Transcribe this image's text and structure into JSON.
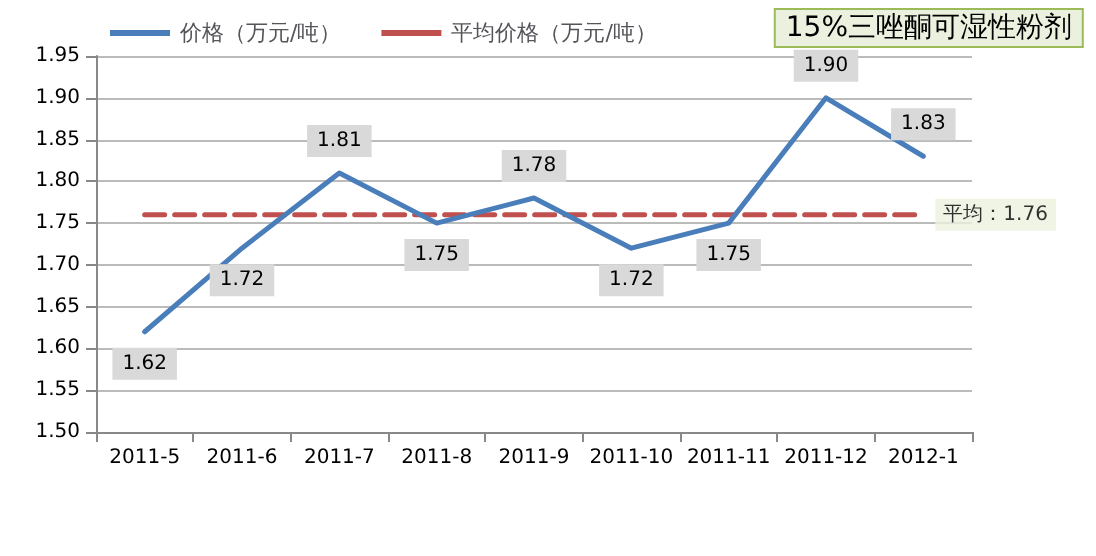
{
  "chart_data": {
    "type": "line",
    "title": "15%三唑酮可湿性粉剂",
    "categories": [
      "2011-5",
      "2011-6",
      "2011-7",
      "2011-8",
      "2011-9",
      "2011-10",
      "2011-11",
      "2011-12",
      "2012-1"
    ],
    "series": [
      {
        "name": "价格（万元/吨）",
        "color": "#4a7ebb",
        "values": [
          1.62,
          1.72,
          1.81,
          1.75,
          1.78,
          1.72,
          1.75,
          1.9,
          1.83
        ],
        "value_labels": [
          "1.62",
          "1.72",
          "1.81",
          "1.75",
          "1.78",
          "1.72",
          "1.75",
          "1.90",
          "1.83"
        ]
      },
      {
        "name": "平均价格（万元/吨）",
        "color": "#c0504d",
        "line_style": "dashed",
        "values": [
          1.76,
          1.76,
          1.76,
          1.76,
          1.76,
          1.76,
          1.76,
          1.76,
          1.76
        ]
      }
    ],
    "annotations": [
      {
        "text": "平均：1.76",
        "x": "2012-1",
        "y": 1.76
      }
    ],
    "ylim": [
      1.5,
      1.95
    ],
    "yticks": [
      {
        "value": 1.5,
        "label": "1.50"
      },
      1.55,
      {
        "value": 1.6,
        "label": "1.60"
      },
      1.65,
      {
        "value": 1.7,
        "label": "1.70"
      },
      1.75,
      {
        "value": 1.8,
        "label": "1.80"
      },
      1.85,
      {
        "value": 1.9,
        "label": "1.90"
      },
      1.95
    ],
    "grid": "y",
    "legend": "top left",
    "marker": "none"
  }
}
